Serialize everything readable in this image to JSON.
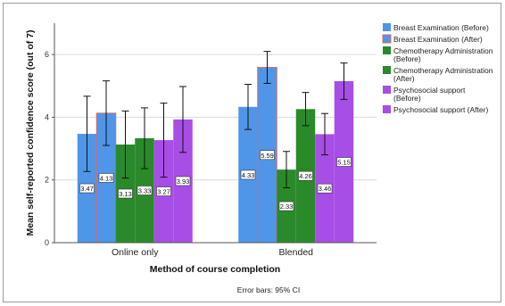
{
  "chart_data": {
    "type": "bar",
    "categories": [
      "Online only",
      "Blended"
    ],
    "xlabel": "Method of course completion",
    "ylabel": "Mean self-reported confidence score (out of 7)",
    "ylim": [
      0,
      7
    ],
    "yticks": [
      0,
      2,
      4,
      6
    ],
    "grid": true,
    "legend_position": "right",
    "footnote": "Error bars: 95% CI",
    "series": [
      {
        "name": "Breast Examination (Before)",
        "color": "#4f96e8",
        "values": [
          3.47,
          4.33
        ],
        "ci_low": [
          2.27,
          3.61
        ],
        "ci_high": [
          4.67,
          5.05
        ],
        "labels": [
          "3.47",
          "4.33"
        ]
      },
      {
        "name": "Breast Examination (After)",
        "color": "#4f96e8",
        "outline": "#e06666",
        "values": [
          4.13,
          5.59
        ],
        "ci_low": [
          3.1,
          5.08
        ],
        "ci_high": [
          5.16,
          6.1
        ],
        "labels": [
          "4.13",
          "5.59"
        ]
      },
      {
        "name": "Chemotherapy Administration (Before)",
        "color": "#2a8a2a",
        "values": [
          3.13,
          2.33
        ],
        "ci_low": [
          2.06,
          1.75
        ],
        "ci_high": [
          4.2,
          2.91
        ],
        "labels": [
          "3.13",
          "2.33"
        ]
      },
      {
        "name": "Chemotherapy Administration (After)",
        "color": "#2a8a2a",
        "values": [
          3.33,
          4.26
        ],
        "ci_low": [
          2.36,
          3.73
        ],
        "ci_high": [
          4.3,
          4.79
        ],
        "labels": [
          "3.33",
          "4.26"
        ]
      },
      {
        "name": "Psychosocial support (Before)",
        "color": "#a74ee6",
        "values": [
          3.27,
          3.46
        ],
        "ci_low": [
          2.09,
          2.8
        ],
        "ci_high": [
          4.45,
          4.12
        ],
        "labels": [
          "3.27",
          "3.46"
        ]
      },
      {
        "name": "Psychosocial support (After)",
        "color": "#a74ee6",
        "values": [
          3.93,
          5.15
        ],
        "ci_low": [
          2.88,
          4.57
        ],
        "ci_high": [
          4.98,
          5.73
        ],
        "labels": [
          "3.93",
          "5.15"
        ]
      }
    ]
  }
}
